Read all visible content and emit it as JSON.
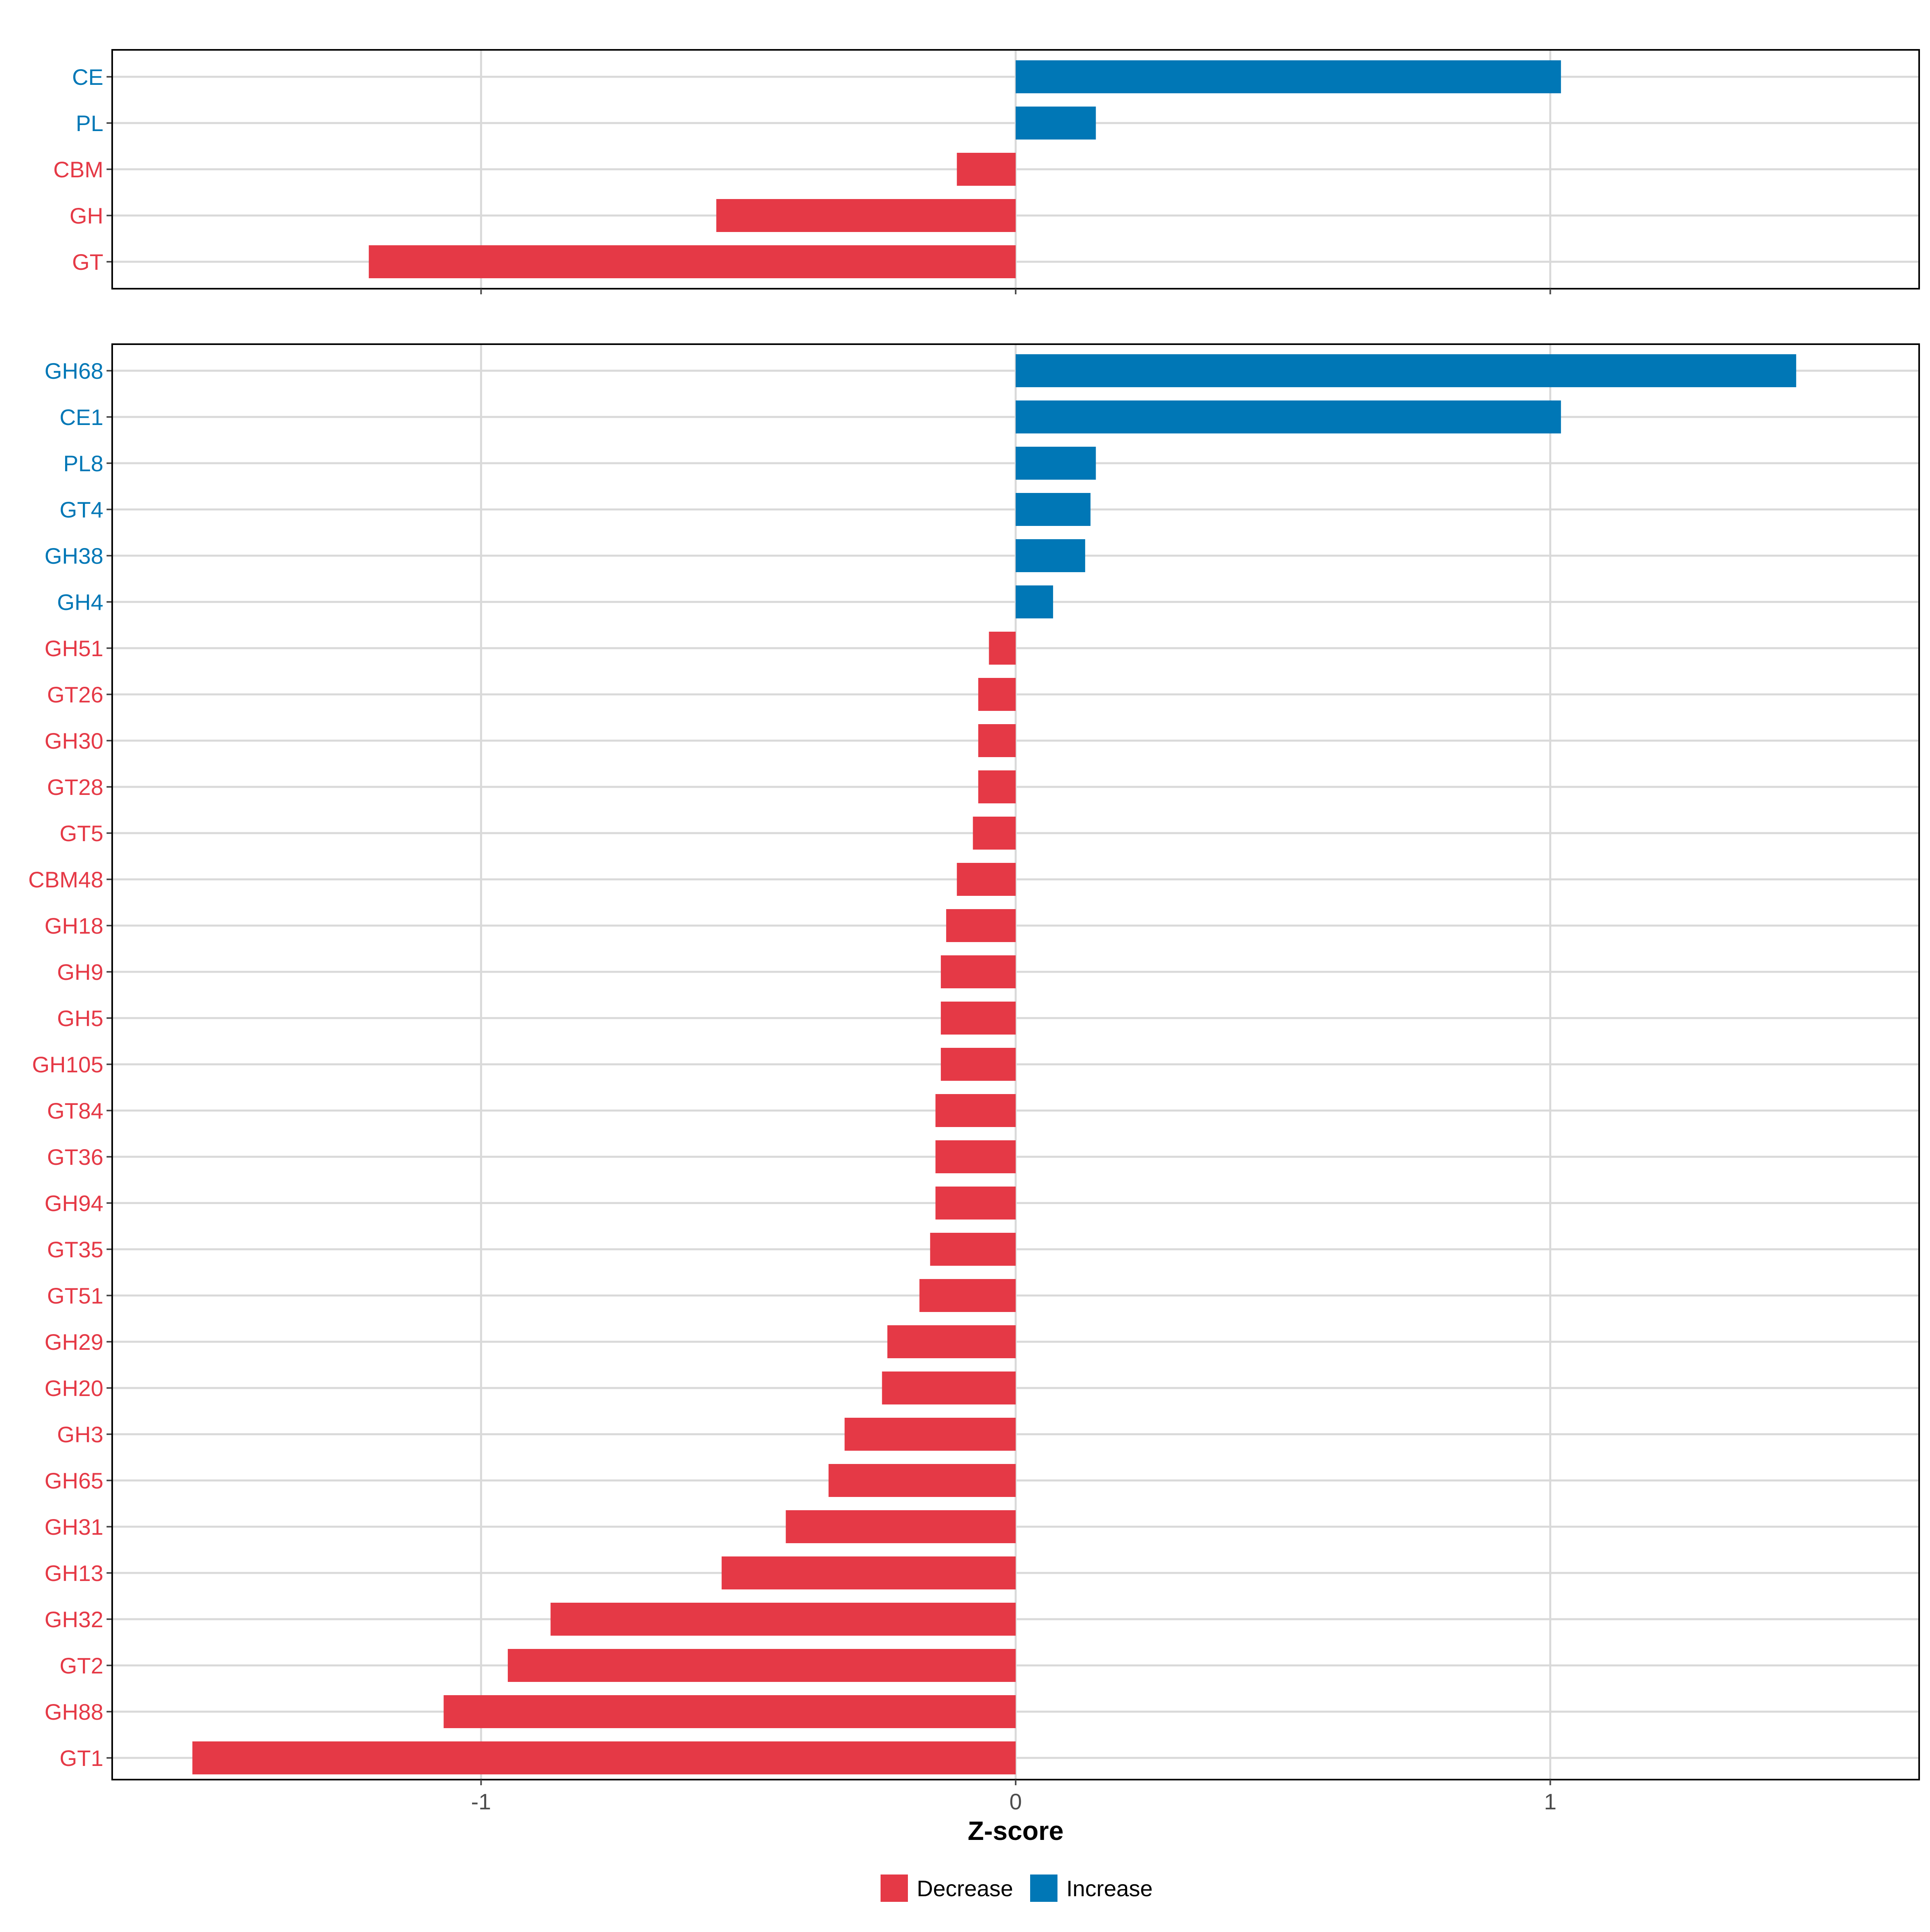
{
  "colors": {
    "decrease": "#E53946",
    "increase": "#0077B6",
    "grid": "#D9D9D9",
    "axis": "#000000",
    "tick_text": "#4D4D4D"
  },
  "chart_data": [
    {
      "type": "bar",
      "orientation": "horizontal",
      "panel": "top",
      "categories": [
        "CE",
        "PL",
        "CBM",
        "GH",
        "GT"
      ],
      "values": [
        1.02,
        0.15,
        -0.11,
        -0.56,
        -1.21
      ],
      "groups": [
        "Increase",
        "Increase",
        "Decrease",
        "Decrease",
        "Decrease"
      ],
      "xlim": [
        -1.69,
        1.69
      ],
      "xticks": [
        -1,
        0,
        1
      ],
      "xtick_labels": [
        "-1",
        "0",
        "1"
      ],
      "grid": true
    },
    {
      "type": "bar",
      "orientation": "horizontal",
      "panel": "bottom",
      "categories": [
        "GH68",
        "CE1",
        "PL8",
        "GT4",
        "GH38",
        "GH4",
        "GH51",
        "GT26",
        "GH30",
        "GT28",
        "GT5",
        "CBM48",
        "GH18",
        "GH9",
        "GH5",
        "GH105",
        "GT84",
        "GT36",
        "GH94",
        "GT35",
        "GT51",
        "GH29",
        "GH20",
        "GH3",
        "GH65",
        "GH31",
        "GH13",
        "GH32",
        "GT2",
        "GH88",
        "GT1"
      ],
      "values": [
        1.46,
        1.02,
        0.15,
        0.14,
        0.13,
        0.07,
        -0.05,
        -0.07,
        -0.07,
        -0.07,
        -0.08,
        -0.11,
        -0.13,
        -0.14,
        -0.14,
        -0.14,
        -0.15,
        -0.15,
        -0.15,
        -0.16,
        -0.18,
        -0.24,
        -0.25,
        -0.32,
        -0.35,
        -0.43,
        -0.55,
        -0.87,
        -0.95,
        -1.07,
        -1.54
      ],
      "groups": [
        "Increase",
        "Increase",
        "Increase",
        "Increase",
        "Increase",
        "Increase",
        "Decrease",
        "Decrease",
        "Decrease",
        "Decrease",
        "Decrease",
        "Decrease",
        "Decrease",
        "Decrease",
        "Decrease",
        "Decrease",
        "Decrease",
        "Decrease",
        "Decrease",
        "Decrease",
        "Decrease",
        "Decrease",
        "Decrease",
        "Decrease",
        "Decrease",
        "Decrease",
        "Decrease",
        "Decrease",
        "Decrease",
        "Decrease",
        "Decrease"
      ],
      "xlim": [
        -1.69,
        1.69
      ],
      "xticks": [
        -1,
        0,
        1
      ],
      "xtick_labels": [
        "-1",
        "0",
        "1"
      ],
      "xlabel": "Z-score",
      "grid": true
    }
  ],
  "legend": {
    "position": "bottom",
    "items": [
      {
        "label": "Decrease",
        "color": "#E53946"
      },
      {
        "label": "Increase",
        "color": "#0077B6"
      }
    ]
  }
}
